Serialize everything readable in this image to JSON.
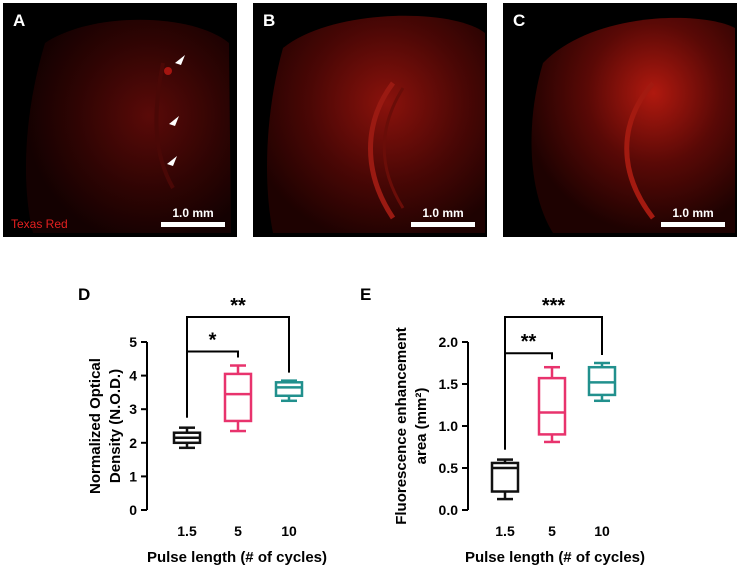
{
  "micrographs": [
    {
      "label": "A",
      "scale": "1.0 mm",
      "stain": "Texas Red"
    },
    {
      "label": "B",
      "scale": "1.0 mm"
    },
    {
      "label": "C",
      "scale": "1.0 mm"
    }
  ],
  "colors": {
    "c1": "#111111",
    "c2": "#e8336d",
    "c3": "#21908d",
    "stain": "#e32020"
  },
  "chart_data": [
    {
      "panel": "D",
      "type": "box",
      "xlabel": "Pulse length (# of cycles)",
      "ylabel_lines": [
        "Normalized Optical",
        "Density (N.O.D.)"
      ],
      "categories": [
        "1.5",
        "5",
        "10"
      ],
      "ylim": [
        0,
        5
      ],
      "yticks": [
        "0",
        "1",
        "2",
        "3",
        "4",
        "5"
      ],
      "boxes": [
        {
          "min": 1.85,
          "q1": 2.0,
          "median": 2.15,
          "q3": 2.3,
          "max": 2.45
        },
        {
          "min": 2.35,
          "q1": 2.65,
          "median": 3.45,
          "q3": 4.05,
          "max": 4.3
        },
        {
          "min": 3.25,
          "q1": 3.4,
          "median": 3.65,
          "q3": 3.8,
          "max": 3.85
        }
      ],
      "significance": [
        {
          "from": "1.5",
          "to": "5",
          "label": "*"
        },
        {
          "from": "1.5",
          "to": "10",
          "label": "**"
        }
      ]
    },
    {
      "panel": "E",
      "type": "box",
      "xlabel": "Pulse length (# of cycles)",
      "ylabel_lines": [
        "Fluorescence enhancement",
        "area (mm²)"
      ],
      "categories": [
        "1.5",
        "5",
        "10"
      ],
      "ylim": [
        0,
        2.0
      ],
      "yticks": [
        "0.0",
        "0.5",
        "1.0",
        "1.5",
        "2.0"
      ],
      "boxes": [
        {
          "min": 0.13,
          "q1": 0.22,
          "median": 0.5,
          "q3": 0.56,
          "max": 0.6
        },
        {
          "min": 0.81,
          "q1": 0.9,
          "median": 1.16,
          "q3": 1.57,
          "max": 1.7
        },
        {
          "min": 1.3,
          "q1": 1.37,
          "median": 1.52,
          "q3": 1.7,
          "max": 1.75
        }
      ],
      "significance": [
        {
          "from": "1.5",
          "to": "5",
          "label": "**"
        },
        {
          "from": "1.5",
          "to": "10",
          "label": "***"
        }
      ]
    }
  ]
}
